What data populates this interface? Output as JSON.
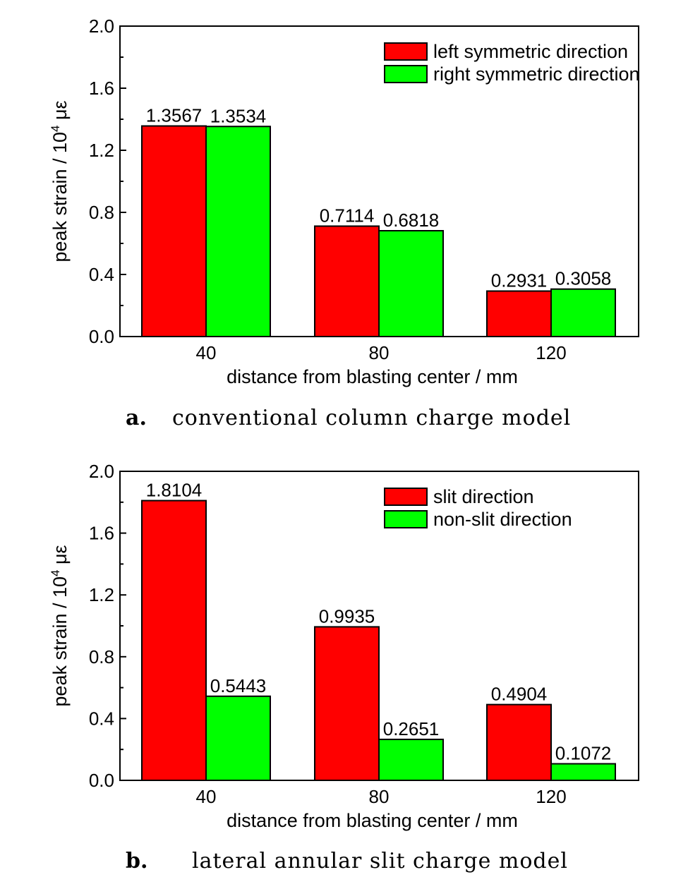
{
  "chart_data": [
    {
      "type": "bar",
      "caption_letter": "a.",
      "caption": "conventional column charge model",
      "categories": [
        "40",
        "80",
        "120"
      ],
      "series": [
        {
          "name": "left symmetric direction",
          "values": [
            1.3567,
            0.7114,
            0.2931
          ]
        },
        {
          "name": "right symmetric direction",
          "values": [
            1.3534,
            0.6818,
            0.3058
          ]
        }
      ],
      "value_labels": [
        [
          "1.3567",
          "0.7114",
          "0.2931"
        ],
        [
          "1.3534",
          "0.6818",
          "0.3058"
        ]
      ],
      "xlabel": "distance from blasting center / mm",
      "ylabel": "peak strain / 10",
      "ylabel_sup": "4",
      "ylabel_unit": " με",
      "ylim": [
        0,
        2.0
      ],
      "yticks": [
        "0.0",
        "0.4",
        "0.8",
        "1.2",
        "1.6",
        "2.0"
      ],
      "legend_position": "top-right",
      "grid": false
    },
    {
      "type": "bar",
      "caption_letter": "b.",
      "caption": "lateral annular slit charge model",
      "categories": [
        "40",
        "80",
        "120"
      ],
      "series": [
        {
          "name": "slit direction",
          "values": [
            1.8104,
            0.9935,
            0.4904
          ]
        },
        {
          "name": "non-slit direction",
          "values": [
            0.5443,
            0.2651,
            0.1072
          ]
        }
      ],
      "value_labels": [
        [
          "1.8104",
          "0.9935",
          "0.4904"
        ],
        [
          "0.5443",
          "0.2651",
          "0.1072"
        ]
      ],
      "xlabel": "distance from blasting center / mm",
      "ylabel": "peak strain / 10",
      "ylabel_sup": "4",
      "ylabel_unit": " με",
      "ylim": [
        0,
        2.0
      ],
      "yticks": [
        "0.0",
        "0.4",
        "0.8",
        "1.2",
        "1.6",
        "2.0"
      ],
      "legend_position": "top-right",
      "grid": false
    }
  ],
  "colors": {
    "series": [
      "#ff0000",
      "#00ff00"
    ],
    "axis": "#000000"
  }
}
